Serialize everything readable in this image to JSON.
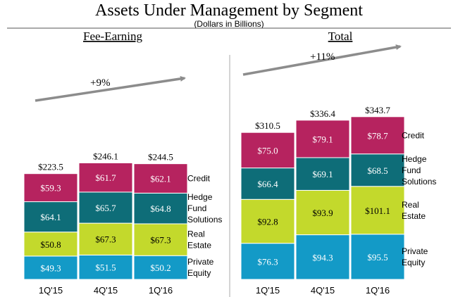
{
  "title": "Assets Under Management by Segment",
  "subtitle": "(Dollars in Billions)",
  "colors": {
    "credit": "#b6235f",
    "hedge": "#0e6d78",
    "real_estate": "#c3d92c",
    "private_equity": "#139ac7",
    "arrow": "#8c8c8c"
  },
  "chart_data": [
    {
      "type": "bar",
      "stacked": true,
      "panel_title": "Fee-Earning",
      "categories": [
        "1Q'15",
        "4Q'15",
        "1Q'16"
      ],
      "series": [
        {
          "name": "Private Equity",
          "key": "private_equity",
          "values": [
            49.3,
            51.5,
            50.2
          ],
          "labels": [
            "$49.3",
            "$51.5",
            "$50.2"
          ]
        },
        {
          "name": "Real Estate",
          "key": "real_estate",
          "values": [
            50.8,
            67.3,
            67.3
          ],
          "labels": [
            "$50.8",
            "$67.3",
            "$67.3"
          ]
        },
        {
          "name": "Hedge Fund Solutions",
          "key": "hedge",
          "values": [
            64.1,
            65.7,
            64.8
          ],
          "labels": [
            "$64.1",
            "$65.7",
            "$64.8"
          ]
        },
        {
          "name": "Credit",
          "key": "credit",
          "values": [
            59.3,
            61.7,
            62.1
          ],
          "labels": [
            "$59.3",
            "$61.7",
            "$62.1"
          ]
        }
      ],
      "totals": [
        223.5,
        246.1,
        244.5
      ],
      "total_labels": [
        "$223.5",
        "$246.1",
        "$244.5"
      ],
      "growth_annotation": "+9%",
      "legend": [
        "Credit",
        "Hedge Fund Solutions",
        "Real Estate",
        "Private Equity"
      ]
    },
    {
      "type": "bar",
      "stacked": true,
      "panel_title": "Total",
      "categories": [
        "1Q'15",
        "4Q'15",
        "1Q'16"
      ],
      "series": [
        {
          "name": "Private Equity",
          "key": "private_equity",
          "values": [
            76.3,
            94.3,
            95.5
          ],
          "labels": [
            "$76.3",
            "$94.3",
            "$95.5"
          ]
        },
        {
          "name": "Real Estate",
          "key": "real_estate",
          "values": [
            92.8,
            93.9,
            101.1
          ],
          "labels": [
            "$92.8",
            "$93.9",
            "$101.1"
          ]
        },
        {
          "name": "Hedge Fund Solutions",
          "key": "hedge",
          "values": [
            66.4,
            69.1,
            68.5
          ],
          "labels": [
            "$66.4",
            "$69.1",
            "$68.5"
          ]
        },
        {
          "name": "Credit",
          "key": "credit",
          "values": [
            75.0,
            79.1,
            78.7
          ],
          "labels": [
            "$75.0",
            "$79.1",
            "$78.7"
          ]
        }
      ],
      "totals": [
        310.5,
        336.4,
        343.7
      ],
      "total_labels": [
        "$310.5",
        "$336.4",
        "$343.7"
      ],
      "growth_annotation": "+11%",
      "legend": [
        "Credit",
        "Hedge Fund Solutions",
        "Real Estate",
        "Private Equity"
      ]
    }
  ]
}
